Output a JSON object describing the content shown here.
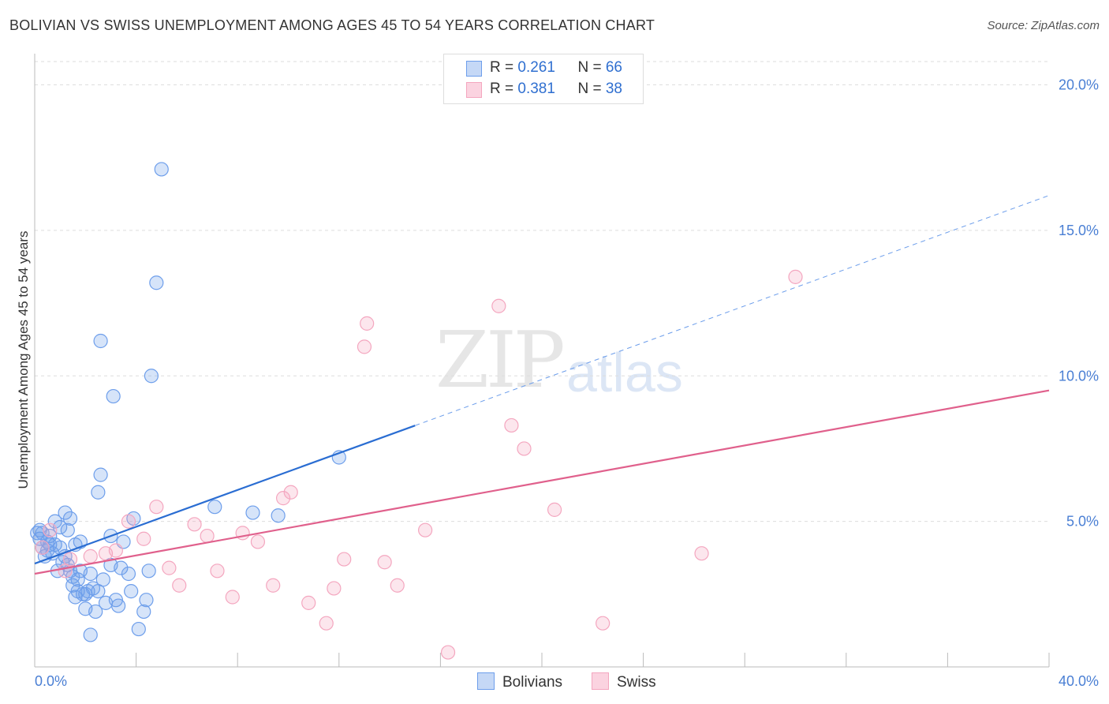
{
  "title": "BOLIVIAN VS SWISS UNEMPLOYMENT AMONG AGES 45 TO 54 YEARS CORRELATION CHART",
  "source": "Source: ZipAtlas.com",
  "watermark": {
    "zip": "ZIP",
    "atlas": "atlas"
  },
  "legend": {
    "rows": [
      {
        "r_label": "R = ",
        "r_value": "0.261",
        "n_label": "N = ",
        "n_value": "66"
      },
      {
        "r_label": "R = ",
        "r_value": "0.381",
        "n_label": "N = ",
        "n_value": "38"
      }
    ]
  },
  "chart_data": {
    "type": "scatter",
    "title": "BOLIVIAN VS SWISS UNEMPLOYMENT AMONG AGES 45 TO 54 YEARS CORRELATION CHART",
    "xlabel": "",
    "ylabel": "Unemployment Among Ages 45 to 54 years",
    "xlim": [
      0,
      40
    ],
    "ylim": [
      0,
      20.8
    ],
    "x_tick_labels": [
      "0.0%",
      "40.0%"
    ],
    "y_ticks": [
      5,
      10,
      15,
      20
    ],
    "y_tick_labels": [
      "5.0%",
      "10.0%",
      "15.0%",
      "20.0%"
    ],
    "grid": true,
    "legend_position": "top-center",
    "colors": {
      "bolivians": "#6d9eeb",
      "bolivians_line": "#2a6dd2",
      "swiss": "#f4a6bf",
      "swiss_line": "#e0608c"
    },
    "series": [
      {
        "name": "Bolivians",
        "points": [
          [
            0.1,
            4.6
          ],
          [
            0.2,
            4.4
          ],
          [
            0.3,
            4.1
          ],
          [
            0.3,
            4.6
          ],
          [
            0.4,
            3.8
          ],
          [
            0.5,
            4.3
          ],
          [
            0.6,
            4.5
          ],
          [
            0.6,
            4.2
          ],
          [
            0.7,
            3.9
          ],
          [
            0.8,
            4.2
          ],
          [
            0.8,
            5.0
          ],
          [
            0.9,
            3.3
          ],
          [
            1.0,
            4.1
          ],
          [
            1.0,
            4.8
          ],
          [
            1.1,
            3.6
          ],
          [
            1.2,
            5.3
          ],
          [
            1.2,
            3.8
          ],
          [
            1.3,
            4.7
          ],
          [
            1.3,
            3.5
          ],
          [
            1.4,
            5.1
          ],
          [
            1.4,
            3.3
          ],
          [
            1.5,
            3.1
          ],
          [
            1.5,
            2.8
          ],
          [
            1.6,
            4.2
          ],
          [
            1.6,
            2.4
          ],
          [
            1.7,
            2.6
          ],
          [
            1.7,
            3.0
          ],
          [
            1.8,
            4.3
          ],
          [
            1.8,
            3.3
          ],
          [
            1.9,
            2.5
          ],
          [
            2.0,
            2.5
          ],
          [
            2.0,
            2.0
          ],
          [
            2.1,
            2.6
          ],
          [
            2.2,
            1.1
          ],
          [
            2.2,
            3.2
          ],
          [
            2.3,
            2.7
          ],
          [
            2.4,
            1.9
          ],
          [
            2.5,
            6.0
          ],
          [
            2.5,
            2.6
          ],
          [
            2.6,
            6.6
          ],
          [
            2.6,
            11.2
          ],
          [
            2.7,
            3.0
          ],
          [
            2.8,
            2.2
          ],
          [
            3.0,
            4.5
          ],
          [
            3.0,
            3.5
          ],
          [
            3.1,
            9.3
          ],
          [
            3.2,
            2.3
          ],
          [
            3.3,
            2.1
          ],
          [
            3.4,
            3.4
          ],
          [
            3.5,
            4.3
          ],
          [
            3.7,
            3.2
          ],
          [
            3.8,
            2.6
          ],
          [
            3.9,
            5.1
          ],
          [
            4.1,
            1.3
          ],
          [
            4.3,
            1.9
          ],
          [
            4.4,
            2.3
          ],
          [
            4.5,
            3.3
          ],
          [
            4.6,
            10.0
          ],
          [
            4.8,
            13.2
          ],
          [
            5.0,
            17.1
          ],
          [
            7.1,
            5.5
          ],
          [
            8.6,
            5.3
          ],
          [
            9.6,
            5.2
          ],
          [
            12.0,
            7.2
          ],
          [
            0.2,
            4.7
          ],
          [
            0.5,
            4.0
          ]
        ]
      },
      {
        "name": "Swiss",
        "points": [
          [
            0.3,
            4.1
          ],
          [
            0.6,
            4.7
          ],
          [
            1.2,
            3.3
          ],
          [
            1.4,
            3.7
          ],
          [
            2.2,
            3.8
          ],
          [
            2.8,
            3.9
          ],
          [
            3.2,
            4.0
          ],
          [
            3.7,
            5.0
          ],
          [
            4.3,
            4.4
          ],
          [
            4.8,
            5.5
          ],
          [
            5.3,
            3.4
          ],
          [
            5.7,
            2.8
          ],
          [
            6.3,
            4.9
          ],
          [
            6.8,
            4.5
          ],
          [
            7.2,
            3.3
          ],
          [
            7.8,
            2.4
          ],
          [
            8.2,
            4.6
          ],
          [
            8.8,
            4.3
          ],
          [
            9.4,
            2.8
          ],
          [
            9.8,
            5.8
          ],
          [
            10.1,
            6.0
          ],
          [
            10.8,
            2.2
          ],
          [
            11.5,
            1.5
          ],
          [
            11.8,
            2.7
          ],
          [
            12.2,
            3.7
          ],
          [
            13.0,
            11.0
          ],
          [
            13.1,
            11.8
          ],
          [
            13.8,
            3.6
          ],
          [
            14.3,
            2.8
          ],
          [
            15.4,
            4.7
          ],
          [
            16.3,
            0.5
          ],
          [
            18.3,
            12.4
          ],
          [
            18.8,
            8.3
          ],
          [
            19.3,
            7.5
          ],
          [
            20.5,
            5.4
          ],
          [
            22.4,
            1.5
          ],
          [
            26.3,
            3.9
          ],
          [
            30.0,
            13.4
          ]
        ]
      }
    ],
    "trendlines": [
      {
        "series": "Bolivians",
        "x0": 0,
        "y0": 3.55,
        "x1": 40,
        "y1": 16.2,
        "solid_until_x": 15.0
      },
      {
        "series": "Swiss",
        "x0": 0,
        "y0": 3.2,
        "x1": 40,
        "y1": 9.5
      }
    ]
  },
  "bottom_legend": [
    {
      "label": "Bolivians"
    },
    {
      "label": "Swiss"
    }
  ]
}
